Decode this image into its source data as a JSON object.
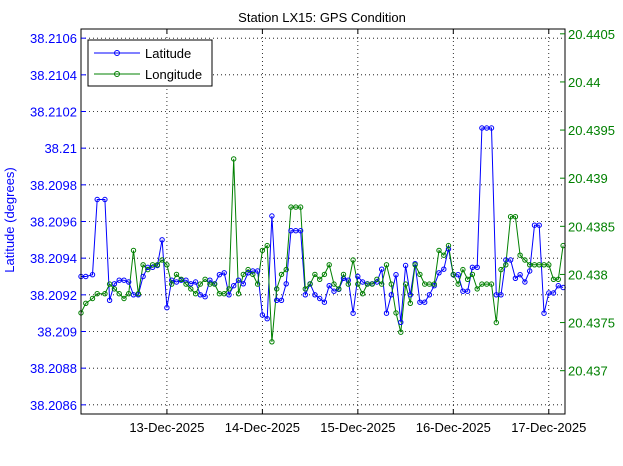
{
  "chart_data": {
    "type": "line",
    "title": "Station LX15: GPS Condition",
    "xlabel": "",
    "ylabel_left": "Latitude (degrees)",
    "ylabel_right": "",
    "grid": true,
    "legend_position": "top-left",
    "x_tick_labels": [
      "13-Dec-2025",
      "14-Dec-2025",
      "15-Dec-2025",
      "16-Dec-2025",
      "17-Dec-2025"
    ],
    "x_tick_values": [
      13,
      14,
      15,
      16,
      17
    ],
    "xlim": [
      12.1,
      17.17
    ],
    "ylim_left": [
      38.20855,
      38.21065
    ],
    "yticks_left": [
      38.2086,
      38.2088,
      38.209,
      38.2092,
      38.2094,
      38.2096,
      38.2098,
      38.21,
      38.2102,
      38.2104,
      38.2106
    ],
    "ytick_labels_left": [
      "38.2086",
      "38.2088",
      "38.209",
      "38.2092",
      "38.2094",
      "38.2096",
      "38.2098",
      "38.21",
      "38.2102",
      "38.2104",
      "38.2106"
    ],
    "ylim_right": [
      20.43655,
      20.44055
    ],
    "yticks_right": [
      20.437,
      20.4375,
      20.438,
      20.4385,
      20.439,
      20.4395,
      20.44,
      20.4405
    ],
    "ytick_labels_right": [
      "20.437",
      "20.4375",
      "20.438",
      "20.4385",
      "20.439",
      "20.4395",
      "20.44",
      "20.4405"
    ],
    "colors": {
      "Latitude": "#0000ff",
      "Longitude": "#008000",
      "axis_left": "#0000ff",
      "axis_right": "#008000"
    },
    "series": [
      {
        "name": "Latitude",
        "axis": "left",
        "points": [
          [
            12.1,
            38.2093
          ],
          [
            12.15,
            38.2093
          ],
          [
            12.22,
            38.20931
          ],
          [
            12.27,
            38.20972
          ],
          [
            12.35,
            38.20972
          ],
          [
            12.4,
            38.20917
          ],
          [
            12.45,
            38.20926
          ],
          [
            12.5,
            38.20928
          ],
          [
            12.55,
            38.20928
          ],
          [
            12.6,
            38.20927
          ],
          [
            12.65,
            38.2092
          ],
          [
            12.7,
            38.2092
          ],
          [
            12.75,
            38.2093
          ],
          [
            12.8,
            38.20935
          ],
          [
            12.85,
            38.20935
          ],
          [
            12.9,
            38.20936
          ],
          [
            12.95,
            38.2095
          ],
          [
            13.0,
            38.20913
          ],
          [
            13.05,
            38.20928
          ],
          [
            13.1,
            38.20927
          ],
          [
            13.15,
            38.20928
          ],
          [
            13.2,
            38.20928
          ],
          [
            13.25,
            38.20926
          ],
          [
            13.3,
            38.20927
          ],
          [
            13.35,
            38.2092
          ],
          [
            13.4,
            38.20919
          ],
          [
            13.45,
            38.20928
          ],
          [
            13.5,
            38.20926
          ],
          [
            13.55,
            38.20931
          ],
          [
            13.6,
            38.20932
          ],
          [
            13.65,
            38.2092
          ],
          [
            13.7,
            38.20925
          ],
          [
            13.75,
            38.20928
          ],
          [
            13.8,
            38.20926
          ],
          [
            13.85,
            38.20932
          ],
          [
            13.9,
            38.20933
          ],
          [
            13.95,
            38.20933
          ],
          [
            14.0,
            38.20909
          ],
          [
            14.05,
            38.20907
          ],
          [
            14.1,
            38.20963
          ],
          [
            14.15,
            38.20917
          ],
          [
            14.2,
            38.20917
          ],
          [
            14.25,
            38.20926
          ],
          [
            14.3,
            38.20955
          ],
          [
            14.35,
            38.20955
          ],
          [
            14.4,
            38.20955
          ],
          [
            14.45,
            38.2092
          ],
          [
            14.5,
            38.20926
          ],
          [
            14.55,
            38.2092
          ],
          [
            14.6,
            38.20918
          ],
          [
            14.65,
            38.20916
          ],
          [
            14.7,
            38.20925
          ],
          [
            14.75,
            38.20922
          ],
          [
            14.8,
            38.20923
          ],
          [
            14.85,
            38.20929
          ],
          [
            14.9,
            38.20928
          ],
          [
            14.95,
            38.2091
          ],
          [
            15.0,
            38.2093
          ],
          [
            15.05,
            38.20927
          ],
          [
            15.1,
            38.20926
          ],
          [
            15.15,
            38.20926
          ],
          [
            15.2,
            38.20927
          ],
          [
            15.25,
            38.20934
          ],
          [
            15.3,
            38.2091
          ],
          [
            15.35,
            38.2092
          ],
          [
            15.4,
            38.20931
          ],
          [
            15.45,
            38.20905
          ],
          [
            15.5,
            38.20936
          ],
          [
            15.55,
            38.2092
          ],
          [
            15.6,
            38.20937
          ],
          [
            15.65,
            38.20916
          ],
          [
            15.7,
            38.20916
          ],
          [
            15.75,
            38.2092
          ],
          [
            15.8,
            38.20925
          ],
          [
            15.85,
            38.20932
          ],
          [
            15.9,
            38.20934
          ],
          [
            15.95,
            38.20945
          ],
          [
            16.0,
            38.20931
          ],
          [
            16.05,
            38.20931
          ],
          [
            16.1,
            38.20922
          ],
          [
            16.15,
            38.20922
          ],
          [
            16.2,
            38.20935
          ],
          [
            16.25,
            38.20935
          ],
          [
            16.3,
            38.21011
          ],
          [
            16.35,
            38.21011
          ],
          [
            16.4,
            38.21011
          ],
          [
            16.45,
            38.2092
          ],
          [
            16.5,
            38.2092
          ],
          [
            16.55,
            38.20939
          ],
          [
            16.6,
            38.20939
          ],
          [
            16.65,
            38.20929
          ],
          [
            16.7,
            38.20931
          ],
          [
            16.75,
            38.20927
          ],
          [
            16.8,
            38.20933
          ],
          [
            16.85,
            38.20958
          ],
          [
            16.9,
            38.20958
          ],
          [
            16.95,
            38.2091
          ],
          [
            17.0,
            38.20921
          ],
          [
            17.05,
            38.20921
          ],
          [
            17.1,
            38.20925
          ],
          [
            17.15,
            38.20924
          ]
        ]
      },
      {
        "name": "Longitude",
        "axis": "right",
        "points": [
          [
            12.1,
            20.4376
          ],
          [
            12.15,
            20.4377
          ],
          [
            12.22,
            20.43775
          ],
          [
            12.27,
            20.4378
          ],
          [
            12.35,
            20.4378
          ],
          [
            12.4,
            20.4379
          ],
          [
            12.45,
            20.43785
          ],
          [
            12.5,
            20.4378
          ],
          [
            12.55,
            20.43775
          ],
          [
            12.6,
            20.4378
          ],
          [
            12.65,
            20.43825
          ],
          [
            12.7,
            20.4378
          ],
          [
            12.75,
            20.4381
          ],
          [
            12.8,
            20.43805
          ],
          [
            12.85,
            20.4381
          ],
          [
            12.9,
            20.4381
          ],
          [
            12.95,
            20.43815
          ],
          [
            13.0,
            20.4381
          ],
          [
            13.05,
            20.4379
          ],
          [
            13.1,
            20.438
          ],
          [
            13.15,
            20.43795
          ],
          [
            13.2,
            20.4379
          ],
          [
            13.25,
            20.43785
          ],
          [
            13.3,
            20.4378
          ],
          [
            13.35,
            20.4379
          ],
          [
            13.4,
            20.43795
          ],
          [
            13.45,
            20.4379
          ],
          [
            13.5,
            20.4379
          ],
          [
            13.55,
            20.4378
          ],
          [
            13.6,
            20.4378
          ],
          [
            13.65,
            20.43785
          ],
          [
            13.7,
            20.4392
          ],
          [
            13.75,
            20.4378
          ],
          [
            13.8,
            20.438
          ],
          [
            13.85,
            20.43805
          ],
          [
            13.9,
            20.438
          ],
          [
            13.95,
            20.4379
          ],
          [
            14.0,
            20.43825
          ],
          [
            14.05,
            20.4383
          ],
          [
            14.1,
            20.4373
          ],
          [
            14.15,
            20.43785
          ],
          [
            14.2,
            20.438
          ],
          [
            14.25,
            20.43805
          ],
          [
            14.3,
            20.4387
          ],
          [
            14.35,
            20.4387
          ],
          [
            14.4,
            20.4387
          ],
          [
            14.45,
            20.43785
          ],
          [
            14.5,
            20.4379
          ],
          [
            14.55,
            20.438
          ],
          [
            14.6,
            20.43795
          ],
          [
            14.65,
            20.438
          ],
          [
            14.7,
            20.4381
          ],
          [
            14.75,
            20.4379
          ],
          [
            14.8,
            20.43785
          ],
          [
            14.85,
            20.438
          ],
          [
            14.9,
            20.4379
          ],
          [
            14.95,
            20.43815
          ],
          [
            15.0,
            20.4379
          ],
          [
            15.05,
            20.4378
          ],
          [
            15.1,
            20.4379
          ],
          [
            15.15,
            20.4379
          ],
          [
            15.2,
            20.43795
          ],
          [
            15.25,
            20.4379
          ],
          [
            15.3,
            20.4381
          ],
          [
            15.35,
            20.4379
          ],
          [
            15.4,
            20.4376
          ],
          [
            15.45,
            20.4374
          ],
          [
            15.5,
            20.4379
          ],
          [
            15.55,
            20.4377
          ],
          [
            15.6,
            20.4381
          ],
          [
            15.65,
            20.438
          ],
          [
            15.7,
            20.4379
          ],
          [
            15.75,
            20.4379
          ],
          [
            15.8,
            20.4379
          ],
          [
            15.85,
            20.43825
          ],
          [
            15.9,
            20.4382
          ],
          [
            15.95,
            20.4383
          ],
          [
            16.0,
            20.438
          ],
          [
            16.05,
            20.4379
          ],
          [
            16.1,
            20.43805
          ],
          [
            16.15,
            20.43795
          ],
          [
            16.2,
            20.438
          ],
          [
            16.25,
            20.43785
          ],
          [
            16.3,
            20.4379
          ],
          [
            16.35,
            20.4379
          ],
          [
            16.4,
            20.4379
          ],
          [
            16.45,
            20.4375
          ],
          [
            16.5,
            20.43805
          ],
          [
            16.55,
            20.4381
          ],
          [
            16.6,
            20.4386
          ],
          [
            16.65,
            20.4386
          ],
          [
            16.7,
            20.4382
          ],
          [
            16.75,
            20.43815
          ],
          [
            16.8,
            20.4381
          ],
          [
            16.85,
            20.4381
          ],
          [
            16.9,
            20.4381
          ],
          [
            16.95,
            20.4381
          ],
          [
            17.0,
            20.4381
          ],
          [
            17.05,
            20.43795
          ],
          [
            17.1,
            20.43795
          ],
          [
            17.15,
            20.4383
          ]
        ]
      }
    ]
  }
}
